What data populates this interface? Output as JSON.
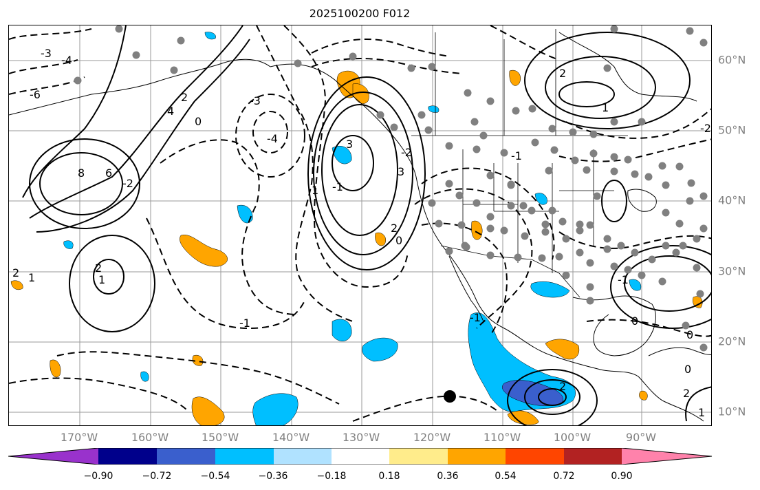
{
  "title": "2025100200 F012",
  "lon_labels": [
    "170°W",
    "160°W",
    "150°W",
    "140°W",
    "130°W",
    "120°W",
    "110°W",
    "100°W",
    "90°W"
  ],
  "lat_labels": [
    "60°N",
    "50°N",
    "40°N",
    "30°N",
    "20°N",
    "10°N"
  ],
  "colorbar": {
    "tick_labels": [
      "−0.90",
      "−0.72",
      "−0.54",
      "−0.36",
      "−0.18",
      "0.18",
      "0.36",
      "0.54",
      "0.72",
      "0.90"
    ],
    "colors": [
      "#9932cc",
      "#00008b",
      "#3a5fcd",
      "#00bfff",
      "#b0e2ff",
      "#ffffff",
      "#ffec8b",
      "#ffa500",
      "#ff4500",
      "#b22222",
      "#ff82ab"
    ]
  },
  "contour_labels": [
    "-3",
    "-4",
    "-6",
    "8",
    "6",
    "4",
    "2",
    "0",
    "-2",
    "1",
    "-1",
    "2",
    "1",
    "2",
    "3",
    "-4",
    "-3",
    "-2",
    "-1",
    "0",
    "1",
    "2",
    "3",
    "-1",
    "0",
    "2",
    "1",
    "-1",
    "0",
    "-2",
    "2",
    "-1",
    "0",
    "2",
    "1"
  ],
  "marker": "filled-circle"
}
